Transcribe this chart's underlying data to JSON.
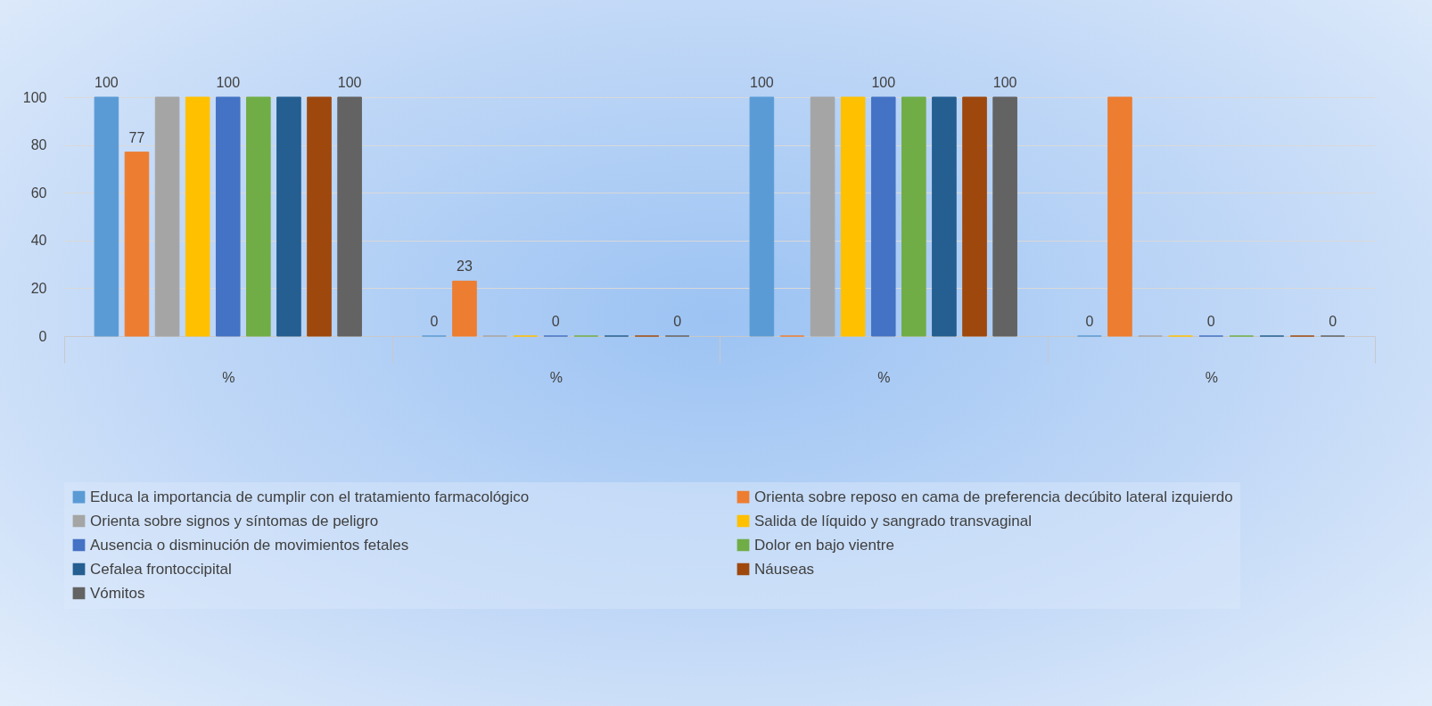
{
  "chart_data": {
    "type": "bar",
    "categories": [
      "%",
      "%",
      "%",
      "%"
    ],
    "series": [
      {
        "name": "Educa la importancia de cumplir con el tratamiento farmacológico",
        "color": "#5b9bd5",
        "values": [
          100,
          0,
          100,
          0
        ],
        "value_labels": [
          "100",
          "0",
          "100",
          "0"
        ]
      },
      {
        "name": "Orienta sobre reposo en cama de preferencia decúbito lateral izquierdo",
        "color": "#ed7d31",
        "values": [
          77,
          23,
          0,
          100
        ],
        "value_labels": [
          "77",
          "23",
          null,
          null
        ]
      },
      {
        "name": "Orienta sobre signos y síntomas de peligro",
        "color": "#a5a5a5",
        "values": [
          100,
          0,
          100,
          0
        ],
        "value_labels": [
          null,
          null,
          null,
          null
        ]
      },
      {
        "name": "Salida de líquido y sangrado transvaginal",
        "color": "#ffc000",
        "values": [
          100,
          0,
          100,
          0
        ],
        "value_labels": [
          null,
          null,
          null,
          null
        ]
      },
      {
        "name": "Ausencia o disminución de movimientos fetales",
        "color": "#4472c4",
        "values": [
          100,
          0,
          100,
          0
        ],
        "value_labels": [
          "100",
          "0",
          "100",
          "0"
        ]
      },
      {
        "name": "Dolor en bajo vientre",
        "color": "#70ad47",
        "values": [
          100,
          0,
          100,
          0
        ],
        "value_labels": [
          null,
          null,
          null,
          null
        ]
      },
      {
        "name": "Cefalea frontoccipital",
        "color": "#255e91",
        "values": [
          100,
          0,
          100,
          0
        ],
        "value_labels": [
          null,
          null,
          null,
          null
        ]
      },
      {
        "name": "Náuseas",
        "color": "#9e480e",
        "values": [
          100,
          0,
          100,
          0
        ],
        "value_labels": [
          null,
          null,
          null,
          null
        ]
      },
      {
        "name": "Vómitos",
        "color": "#636363",
        "values": [
          100,
          0,
          100,
          0
        ],
        "value_labels": [
          "100",
          "0",
          "100",
          "0"
        ]
      }
    ],
    "ylim": [
      0,
      100
    ],
    "yticks": [
      0,
      20,
      40,
      60,
      80,
      100
    ],
    "grid": "y",
    "legend": "bottom"
  }
}
